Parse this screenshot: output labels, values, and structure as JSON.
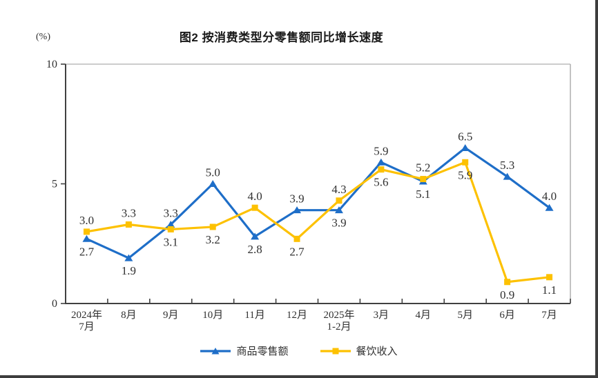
{
  "header": {
    "title": "图2 按消费类型分零售额同比增长速度",
    "unit_label": "(%)"
  },
  "chart_data": {
    "type": "line",
    "title": "图2 按消费类型分零售额同比增长速度",
    "ylabel": "(%)",
    "xlabel": "",
    "ylim": [
      0,
      10
    ],
    "y_ticks": [
      0,
      5,
      10
    ],
    "grid": false,
    "legend_position": "bottom",
    "categories": [
      "2024年\n7月",
      "8月",
      "9月",
      "10月",
      "11月",
      "12月",
      "2025年\n1-2月",
      "3月",
      "4月",
      "5月",
      "6月",
      "7月"
    ],
    "series": [
      {
        "id": "goods-retail-sales",
        "name": "商品零售额",
        "color": "#1E6EC8",
        "marker": "triangle",
        "values": [
          2.7,
          1.9,
          3.3,
          5.0,
          2.8,
          3.9,
          3.9,
          5.9,
          5.1,
          6.5,
          5.3,
          4.0
        ],
        "label_pos": [
          "below",
          "below",
          "above",
          "above",
          "below",
          "above",
          "below",
          "above",
          "below",
          "above",
          "above",
          "above"
        ]
      },
      {
        "id": "catering-revenue",
        "name": "餐饮收入",
        "color": "#FDC101",
        "marker": "square",
        "values": [
          3.0,
          3.3,
          3.1,
          3.2,
          4.0,
          2.7,
          4.3,
          5.6,
          5.2,
          5.9,
          0.9,
          1.1
        ],
        "label_pos": [
          "above",
          "above",
          "below",
          "below",
          "above",
          "below",
          "above",
          "below",
          "above",
          "below",
          "below",
          "below"
        ]
      }
    ],
    "colors": {
      "axis": "#404040",
      "plot_border": "#adadad",
      "label_text": "#303030",
      "page_edge": "#3d3d3d"
    }
  }
}
